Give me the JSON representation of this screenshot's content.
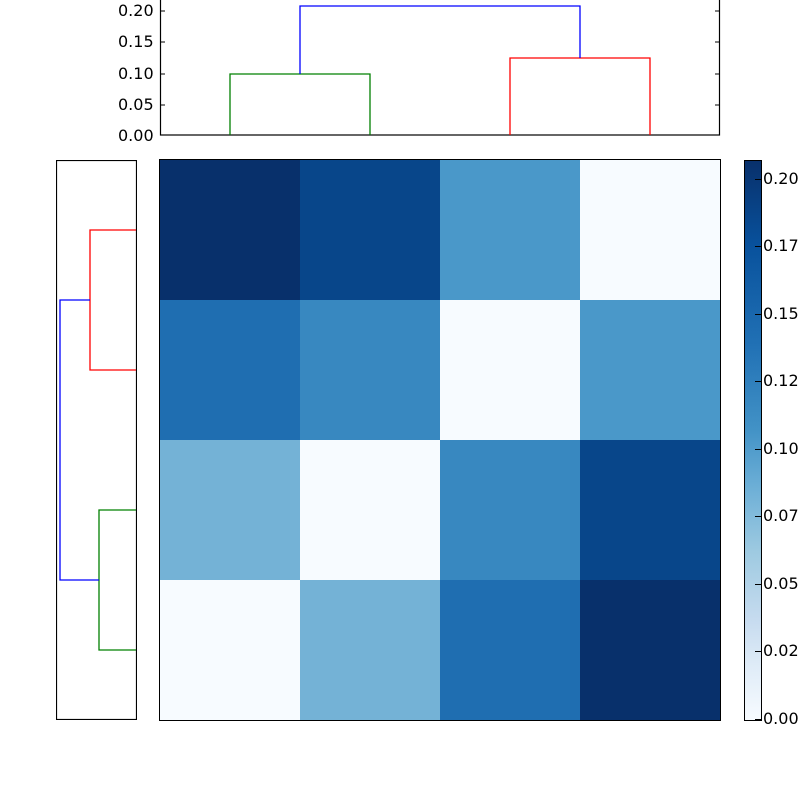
{
  "chart_data": {
    "type": "heatmap",
    "title": "",
    "colormap": "Blues",
    "matrix": [
      [
        0.207,
        0.19,
        0.125,
        0.0
      ],
      [
        0.155,
        0.135,
        0.0,
        0.125
      ],
      [
        0.1,
        0.0,
        0.135,
        0.19
      ],
      [
        0.0,
        0.1,
        0.155,
        0.207
      ]
    ],
    "cell_colors": [
      [
        "#08306b",
        "#08468a",
        "#4a98c9",
        "#f7fbff"
      ],
      [
        "#1f6eb1",
        "#3888c0",
        "#f7fbff",
        "#4a98c9"
      ],
      [
        "#74b2d6",
        "#f7fbff",
        "#3888c0",
        "#08468a"
      ],
      [
        "#f7fbff",
        "#74b2d6",
        "#1f6eb1",
        "#08306b"
      ]
    ],
    "colorbar": {
      "vmin": 0.0,
      "vmax": 0.207,
      "tick_labels": [
        "0.20",
        "0.17",
        "0.15",
        "0.12",
        "0.10",
        "0.07",
        "0.05",
        "0.02",
        "0.00"
      ],
      "tick_values": [
        0.2,
        0.175,
        0.15,
        0.125,
        0.1,
        0.075,
        0.05,
        0.025,
        0.0
      ]
    },
    "top_dendrogram": {
      "ylim": [
        0.0,
        0.21
      ],
      "y_tick_labels": [
        "0.20",
        "0.15",
        "0.10",
        "0.05",
        "0.00"
      ],
      "y_tick_values": [
        0.2,
        0.15,
        0.1,
        0.05,
        0.0
      ],
      "links": [
        {
          "color": "#008000",
          "leaves": [
            0,
            1
          ],
          "height": 0.1
        },
        {
          "color": "#ff0000",
          "leaves": [
            2,
            3
          ],
          "height": 0.125
        },
        {
          "color": "#0000ff",
          "leaves": [
            "cluster_green",
            "cluster_red"
          ],
          "height": 0.207
        }
      ]
    },
    "left_dendrogram": {
      "orientation": "left",
      "links": [
        {
          "color": "#ff0000",
          "leaves": [
            0,
            1
          ],
          "height": 0.125
        },
        {
          "color": "#008000",
          "leaves": [
            2,
            3
          ],
          "height": 0.1
        },
        {
          "color": "#0000ff",
          "leaves": [
            "cluster_red",
            "cluster_green"
          ],
          "height": 0.207
        }
      ]
    },
    "xlabel": "",
    "ylabel": "",
    "grid": false,
    "legend": null
  }
}
